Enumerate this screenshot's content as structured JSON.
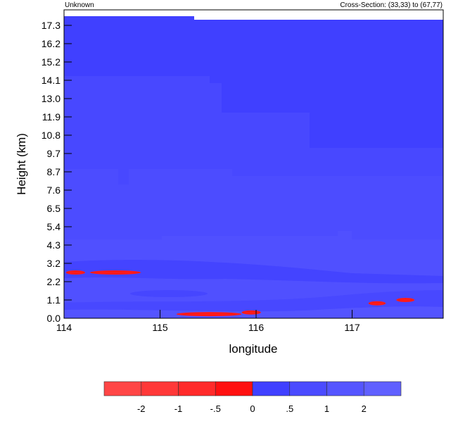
{
  "chart_data": {
    "type": "heatmap",
    "title_left": "Unknown",
    "title_right": "Cross-Section: (33,33) to (67,77)",
    "xlabel": "longitude",
    "ylabel": "Height (km)",
    "xlim": [
      114,
      117.95
    ],
    "x_ticks": [
      "114",
      "115",
      "116",
      "117"
    ],
    "y_ticks": [
      "0.0",
      "1.1",
      "2.2",
      "3.2",
      "4.3",
      "5.4",
      "6.5",
      "7.6",
      "8.7",
      "9.7",
      "10.8",
      "11.9",
      "13.0",
      "14.1",
      "15.2",
      "16.2",
      "17.3"
    ],
    "colorbar": {
      "labels": [
        "-2",
        "-1",
        "-.5",
        "0",
        ".5",
        "1",
        "2"
      ],
      "colors": [
        "#ff4646",
        "#ff3838",
        "#ff2a2a",
        "#ff1010",
        "#4040ff",
        "#4b4bff",
        "#5555ff",
        "#6060ff"
      ]
    },
    "negative_regions": [
      {
        "lon": [
          114.02,
          114.22
        ],
        "height_km": 2.7
      },
      {
        "lon": [
          114.27,
          114.8
        ],
        "height_km": 2.7
      },
      {
        "lon": [
          115.17,
          115.85
        ],
        "height_km": 0.25
      },
      {
        "lon": [
          115.85,
          116.05
        ],
        "height_km": 0.35
      },
      {
        "lon": [
          117.17,
          117.35
        ],
        "height_km": 0.9
      },
      {
        "lon": [
          117.46,
          117.65
        ],
        "height_km": 1.1
      }
    ]
  }
}
